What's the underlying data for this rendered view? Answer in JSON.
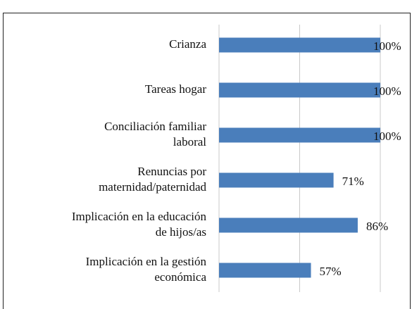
{
  "chart_data": {
    "type": "bar",
    "orientation": "horizontal",
    "categories": [
      "Crianza",
      "Tareas hogar",
      "Conciliación familiar\nlaboral",
      "Renuncias por\nmaternidad/paternidad",
      "Implicación en la educación\nde hijos/as",
      "Implicación en la gestión\neconómica"
    ],
    "values": [
      100,
      100,
      100,
      71,
      86,
      57
    ],
    "value_labels": [
      "100%",
      "100%",
      "100%",
      "71%",
      "86%",
      "57%"
    ],
    "color": "#4a7ebb",
    "xlim": [
      0,
      100
    ],
    "xticks": [
      0,
      50,
      100
    ],
    "grid": true
  }
}
